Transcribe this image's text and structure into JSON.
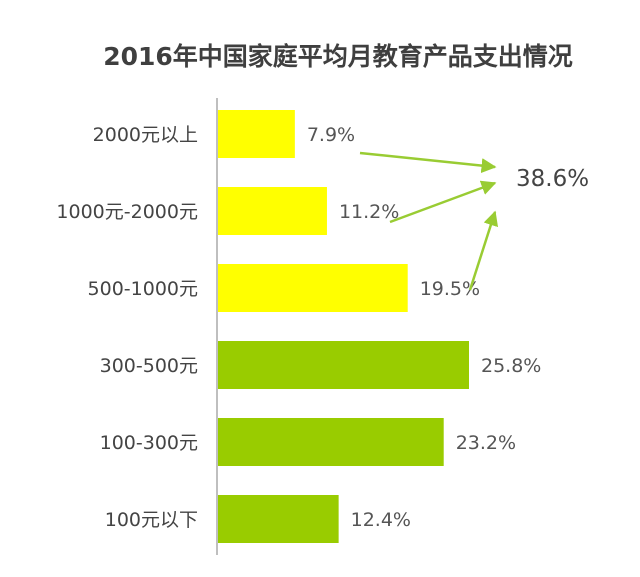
{
  "chart_data": {
    "type": "bar",
    "orientation": "horizontal",
    "title": "2016年中国家庭平均月教育产品支出情况",
    "xlabel": "",
    "ylabel": "",
    "categories": [
      "2000元以上",
      "1000元-2000元",
      "500-1000元",
      "300-500元",
      "100-300元",
      "100元以下"
    ],
    "values": [
      7.9,
      11.2,
      19.5,
      25.8,
      23.2,
      12.4
    ],
    "value_labels": [
      "7.9%",
      "11.2%",
      "19.5%",
      "25.8%",
      "23.2%",
      "12.4%"
    ],
    "xlim": [
      0,
      30
    ],
    "grid": false,
    "legend": "none",
    "bar_colors": [
      "#ffff00",
      "#ffff00",
      "#ffff00",
      "#99cc00",
      "#99cc00",
      "#99cc00"
    ],
    "annotation": {
      "text": "38.6%",
      "refers_to_categories": [
        "2000元以上",
        "1000元-2000元",
        "500-1000元"
      ],
      "arrow_color": "#99cc33"
    }
  },
  "colors": {
    "title": "#3f3f3f",
    "axis": "#bfbfbf",
    "label_text": "#444444"
  }
}
